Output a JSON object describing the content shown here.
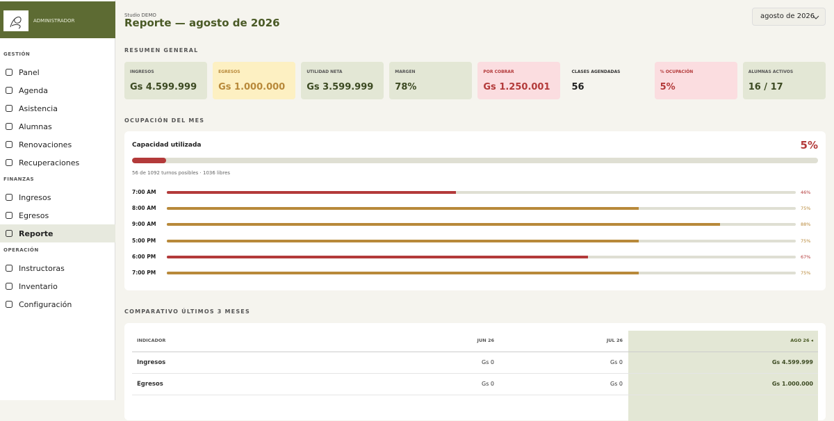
{
  "sidebar": {
    "role": "ADMINISTRADOR",
    "active": "Reporte",
    "sections": [
      {
        "title": "GESTIÓN",
        "items": [
          "Panel",
          "Agenda",
          "Asistencia",
          "Alumnas",
          "Renovaciones",
          "Recuperaciones"
        ]
      },
      {
        "title": "FINANZAS",
        "items": [
          "Ingresos",
          "Egresos",
          "Reporte"
        ]
      },
      {
        "title": "OPERACIÓN",
        "items": [
          "Instructoras",
          "Inventario",
          "Configuración"
        ]
      }
    ]
  },
  "header": {
    "studio": "Studio DEMO",
    "title": "Reporte — agosto de 2026",
    "period": "agosto de 2026"
  },
  "summary": {
    "title": "RESUMEN GENERAL",
    "cards": [
      {
        "label": "INGRESOS",
        "value": "Gs 4.599.999"
      },
      {
        "label": "EGRESOS",
        "value": "Gs 1.000.000"
      },
      {
        "label": "UTILIDAD NETA",
        "value": "Gs 3.599.999"
      },
      {
        "label": "MARGEN",
        "value": "78%"
      },
      {
        "label": "POR COBRAR",
        "value": "Gs 1.250.001"
      },
      {
        "label": "CLASES AGENDADAS",
        "value": "56"
      },
      {
        "label": "% OCUPACIÓN",
        "value": "5%"
      },
      {
        "label": "ALUMNAS ACTIVOS",
        "value": "16 / 17"
      }
    ]
  },
  "occupancy": {
    "title": "OCUPACIÓN DEL MES",
    "card_title": "Capacidad utilizada",
    "percent": {
      "value": 5,
      "label": "5%"
    },
    "note": "56 de 1092 turnos posibles · 1036 libres",
    "slots": [
      {
        "time": "7:00 AM",
        "value": 46,
        "label": "46%",
        "color": "#b33a3a"
      },
      {
        "time": "8:00 AM",
        "value": 75,
        "label": "75%",
        "color": "#b8893a"
      },
      {
        "time": "9:00 AM",
        "value": 88,
        "label": "88%",
        "color": "#b8893a"
      },
      {
        "time": "5:00 PM",
        "value": 75,
        "label": "75%",
        "color": "#b8893a"
      },
      {
        "time": "6:00 PM",
        "value": 67,
        "label": "67%",
        "color": "#b33a3a"
      },
      {
        "time": "7:00 PM",
        "value": 75,
        "label": "75%",
        "color": "#b8893a"
      }
    ]
  },
  "comparison": {
    "title": "COMPARATIVO ÚLTIMOS 3 MESES",
    "headers": [
      "INDICADOR",
      "JUN 26",
      "JUL 26",
      "AGO 26 ◂"
    ],
    "rows": [
      [
        "Ingresos",
        "Gs 0",
        "Gs 0",
        "Gs 4.599.999"
      ],
      [
        "Egresos",
        "Gs 0",
        "Gs 0",
        "Gs 1.000.000"
      ]
    ]
  }
}
